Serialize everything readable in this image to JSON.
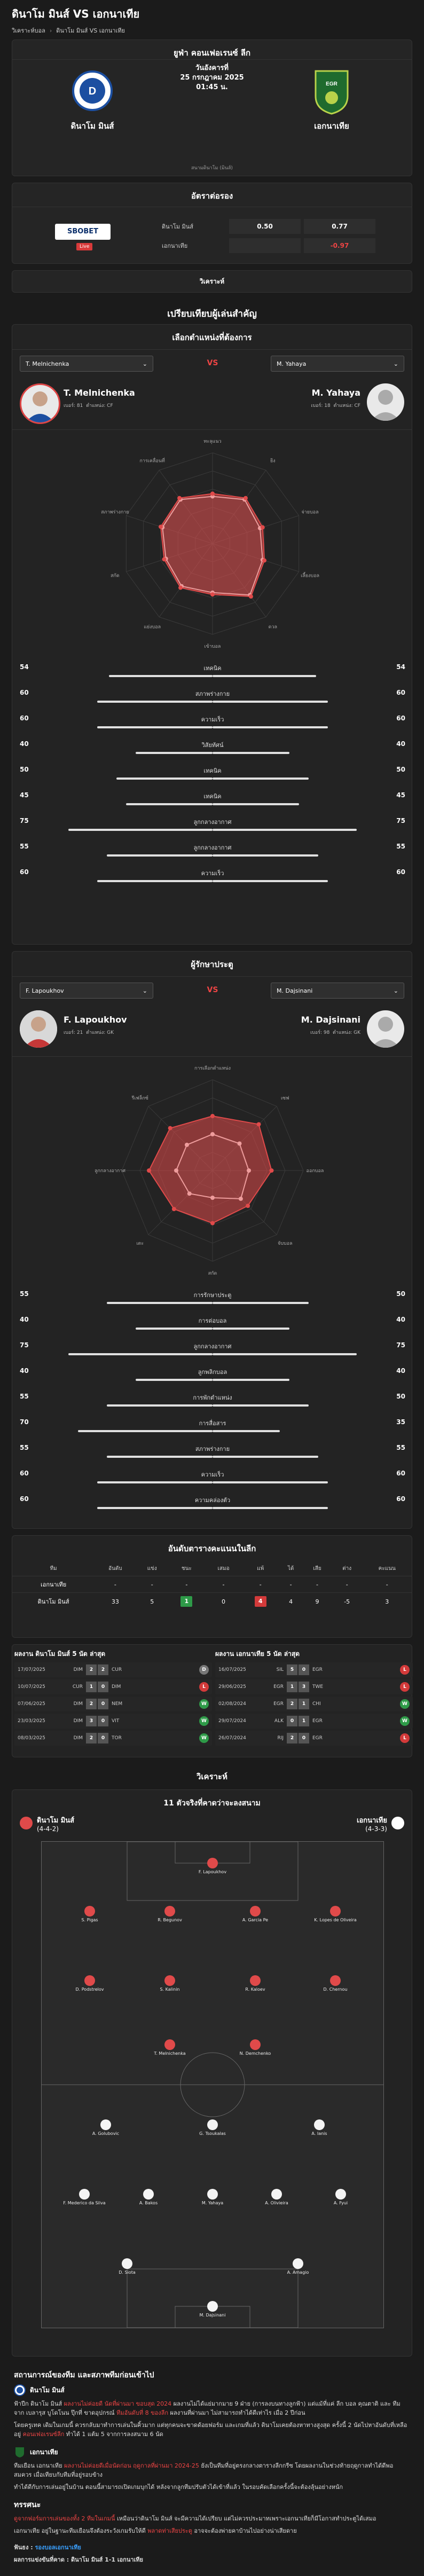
{
  "page": {
    "title": "ดินาโม มินส์ VS เอกนาเทีย",
    "breadcrumbs": [
      "วิเคราะห์บอล",
      "ดินาโม มินส์ VS เอกนาเทีย"
    ]
  },
  "match": {
    "league": "ยูฟ่า คอนเฟอเรนซ์ ลีก",
    "day": "วันอังคารที่",
    "date": "25 กรกฎาคม 2025",
    "time": "01:45 น.",
    "home": "ดินาโม มินส์",
    "away": "เอกนาเทีย",
    "venue": "สนามดินาโม (มินส์)"
  },
  "odds": {
    "title": "อัตราต่อรอง",
    "bookmaker": "SBOBET",
    "live_label": "Live",
    "rows": [
      {
        "team": "ดินาโม มินส์",
        "handicap": "0.50",
        "price": "0.77"
      },
      {
        "team": "เอกนาเทีย",
        "handicap": "",
        "price": "-0.97"
      }
    ]
  },
  "analysis_button": "วิเคราะห์",
  "compare": {
    "title": "เปรียบเทียบผู้เล่นสำคัญ",
    "attack": {
      "subtitle": "เลือกตำแหน่งที่ต้องการ",
      "vs": "VS",
      "left": {
        "name": "T. Melnichenka",
        "meta_num": "เบอร์: 81",
        "meta_pos": "ตำแหน่ง: CF"
      },
      "right": {
        "name": "M. Yahaya",
        "meta_num": "เบอร์: 18",
        "meta_pos": "ตำแหน่ง: CF"
      },
      "radar_labels": [
        "ทะลุแนว",
        "ยิง",
        "จ่ายบอล",
        "เลี้ยงบอล",
        "ดวล",
        "เข้าบอล",
        "แย่งบอล",
        "สกัด",
        "สภาพร่างกาย",
        "การเคลื่อนที่"
      ],
      "stats": [
        {
          "label": "เทคนิค",
          "l": 54,
          "r": 54
        },
        {
          "label": "สภาพร่างกาย",
          "l": 60,
          "r": 60
        },
        {
          "label": "ความเร็ว",
          "l": 60,
          "r": 60
        },
        {
          "label": "วิสัยทัศน์",
          "l": 40,
          "r": 40
        },
        {
          "label": "เทคนิค",
          "l": 50,
          "r": 50
        },
        {
          "label": "เทคนิค",
          "l": 45,
          "r": 45
        },
        {
          "label": "ลูกกลางอากาศ",
          "l": 75,
          "r": 75
        },
        {
          "label": "ลูกกลางอากาศ",
          "l": 55,
          "r": 55
        },
        {
          "label": "ความเร็ว",
          "l": 60,
          "r": 60
        }
      ]
    },
    "keeper": {
      "subtitle": "ผู้รักษาประตู",
      "vs": "VS",
      "left": {
        "name": "F. Lapoukhov",
        "meta_num": "เบอร์: 21",
        "meta_pos": "ตำแหน่ง: GK"
      },
      "right": {
        "name": "M. Dajsinani",
        "meta_num": "เบอร์: 98",
        "meta_pos": "ตำแหน่ง: GK"
      },
      "radar_labels": [
        "การเลือกตำแหน่ง",
        "เซฟ",
        "ออกบอล",
        "จับบอล",
        "สกัด",
        "เตะ",
        "ลูกกลางอากาศ",
        "รีเฟล็กซ์"
      ],
      "stats": [
        {
          "label": "การรักษาประตู",
          "l": 55,
          "r": 50
        },
        {
          "label": "การต่อบอล",
          "l": 40,
          "r": 40
        },
        {
          "label": "ลูกกลางอากาศ",
          "l": 75,
          "r": 75
        },
        {
          "label": "ลูกพลิกบอล",
          "l": 40,
          "r": 40
        },
        {
          "label": "การพักตำแหน่ง",
          "l": 55,
          "r": 50
        },
        {
          "label": "การสื่อสาร",
          "l": 70,
          "r": 35
        },
        {
          "label": "สภาพร่างกาย",
          "l": 55,
          "r": 55
        },
        {
          "label": "ความเร็ว",
          "l": 60,
          "r": 60
        },
        {
          "label": "ความคล่องตัว",
          "l": 60,
          "r": 60
        }
      ]
    }
  },
  "standings": {
    "title": "อันดับตารางคะแนนในลีก",
    "headers": [
      "ทีม",
      "อันดับ",
      "แข่ง",
      "ชนะ",
      "เสมอ",
      "แพ้",
      "ได้",
      "เสีย",
      "ต่าง",
      "คะแนน"
    ],
    "rows": [
      {
        "team": "เอกนาเทีย",
        "pos": "-",
        "p": "-",
        "w": "-",
        "d": "-",
        "l": "-",
        "gf": "-",
        "ga": "-",
        "gd": "-",
        "pts": "-"
      },
      {
        "team": "ดินาโม มินส์",
        "pos": "33",
        "p": "5",
        "w": "1",
        "d": "0",
        "l": "4",
        "gf": "4",
        "ga": "9",
        "gd": "-5",
        "pts": "3"
      }
    ]
  },
  "form": {
    "home_title": "ผลงาน ดินาโม มินส์ 5 นัด ล่าสุด",
    "away_title": "ผลงาน เอกนาเทีย 5 นัด ล่าสุด",
    "home": [
      {
        "date": "17/07/2025",
        "t1": "DIM",
        "s1": "2",
        "s2": "2",
        "t2": "CUR",
        "res": "D"
      },
      {
        "date": "10/07/2025",
        "t1": "CUR",
        "s1": "1",
        "s2": "0",
        "t2": "DIM",
        "res": "L"
      },
      {
        "date": "07/06/2025",
        "t1": "DIM",
        "s1": "2",
        "s2": "0",
        "t2": "NEM",
        "res": "W"
      },
      {
        "date": "23/03/2025",
        "t1": "DIM",
        "s1": "3",
        "s2": "0",
        "t2": "VIT",
        "res": "W"
      },
      {
        "date": "08/03/2025",
        "t1": "DIM",
        "s1": "2",
        "s2": "0",
        "t2": "TOR",
        "res": "W"
      }
    ],
    "away": [
      {
        "date": "16/07/2025",
        "t1": "SIL",
        "s1": "5",
        "s2": "0",
        "t2": "EGR",
        "res": "L"
      },
      {
        "date": "29/06/2025",
        "t1": "EGR",
        "s1": "1",
        "s2": "3",
        "t2": "TWE",
        "res": "L"
      },
      {
        "date": "02/08/2024",
        "t1": "EGR",
        "s1": "2",
        "s2": "1",
        "t2": "CHI",
        "res": "W"
      },
      {
        "date": "29/07/2024",
        "t1": "ALK",
        "s1": "0",
        "s2": "1",
        "t2": "EGR",
        "res": "W"
      },
      {
        "date": "26/07/2024",
        "t1": "RIJ",
        "s1": "2",
        "s2": "0",
        "t2": "EGR",
        "res": "L"
      }
    ]
  },
  "lineup": {
    "section_title": "วิเคราะห์",
    "title": "11 ตัวจริงที่คาดว่าจะลงสนาม",
    "home_name": "ดินาโม มินส์",
    "home_formation": "(4-4-2)",
    "away_name": "เอกนาเทีย",
    "away_formation": "(4-3-3)",
    "home_players": [
      "F. Lapoukhov",
      "S. Pigas",
      "R. Begunov",
      "A. Garcia Pe",
      "K. Lopes de Oliveira",
      "D. Podstrelov",
      "S. Kalinin",
      "R. Kaloev",
      "D. Chernou",
      "T. Melnichenka",
      "N. Demchenko"
    ],
    "away_players": [
      "A. Golubovic",
      "G. Tsoukalas",
      "A. Ianis",
      "F. Mederico da Silva",
      "A. Bakos",
      "M. Yahaya",
      "A. Olivieira",
      "A. Fyui",
      "D. Siota",
      "A. Amagio",
      "M. Dajsinani"
    ]
  },
  "news": {
    "title": "สถานการณ์ของทีม และสภาพทีมก่อนเข้าไป",
    "home_team": "ดินาโม มินส์",
    "home_p1_a": "ฟ้าปีก ดินาโม มินส์ ",
    "home_p1_hl": "ผลงานไม่ค่อยดี นัดที่ผ่านมา ขอบสุด 2024",
    "home_p1_b": " ผลงานไม่ได้แย่มากมาย 9 ฝ่าย (การลงบนทางลูกฟ้า) แต่แม้ที่แค่ ลีก บอล คุณตาติ และ ทีมจาก เบลารุส บูโดโนน ปุ๊กที่ ขาดอุปกรณ์ ",
    "home_p1_hl2": "ทีมอันดับที่ 8 ของลีก",
    "home_p1_c": " ผลงานที่ผ่านมา ไม่สามารถทำได้ดีเท่าไร เมื่อ 2 ปีก่อน",
    "home_p2": "โดยครูเทค เดิมในเกมนี้ ควรกลับมาทำการเล่นในคิ้วมาก แต่ทุกคนจะขาดด้อยฟอร์ม และเกมที่แล้ว ดินาโมเคยต้องหาทางสูงสุด ครั้งนี้ 2 นัดไปหาอันดับที่เหลืออยู่ ",
    "home_p2_hl": "คอนเฟอเรนซ์ลีก",
    "home_p2_b": " ทำได้ 1 แต้ม 5 จากการลงสนาม 6 นัด",
    "away_team": "เอกนาเทีย",
    "away_p1_a": "ทีมเยือน เอกนาเทีย ",
    "away_p1_hl": "ผลงานไม่ค่อยดีเมื่อนัดก่อน ฤดูกาลที่ผ่านมา 2024-25",
    "away_p1_b": " ยังเป็นทีมที่อยู่ตรงกลางตารางลีกกรีซ โดยผลงานในช่วงท้ายฤดูกาลทำได้ดีพอสมควร เมื่อเทียบกับทีมที่อยู่รอบข้าง",
    "away_p2": "ทำได้ดีกับการเล่นอยู่ในบ้าน ตอนนี้สามารถเปิดเกมบุกได้ หลังจากลูกทีมปรับตัวได้เข้าที่แล้ว ในรอบคัดเลือกครั้งนี้จะต้องลุ้นอย่างหนัก",
    "conclusion_title": "ทรรศนะ",
    "conclusion_hl": "ดูจากฟอร์มการเล่นของทั้ง 2 ทีมในเกมนี้ ",
    "conclusion_a": "เหมือนว่าดินาโม มินส์ จะมีความได้เปรียบ แต่ไม่ควรประมาทเพราะเอกนาเทียก็มีโอกาสทำประตูได้เสมอ",
    "conclusion_b": "เอกนาเทีย อยู่ในฐานะทีมเยือนจึงต้องระวังเกมรับให้ดี ",
    "conclusion_hl2": "พลาดท่าเสียประตู",
    "conclusion_c": " อาจจะต้องพ่ายคาบ้านไปอย่างน่าเสียดาย",
    "pick_label": "ฟันธง : ",
    "pick_value": "รองบอลเอกนาเทีย",
    "score_label": "ผลการแข่งขันที่คาด : ",
    "score_value": "ดินาโม มินส์ 1-1 เอกนาเทีย"
  },
  "colors": {
    "accent_red": "#e44444",
    "home_blue": "#1c4fa1",
    "away_green": "#1f6b2e",
    "win": "#2e9a48",
    "draw": "#777777",
    "loss": "#d33a3a"
  }
}
